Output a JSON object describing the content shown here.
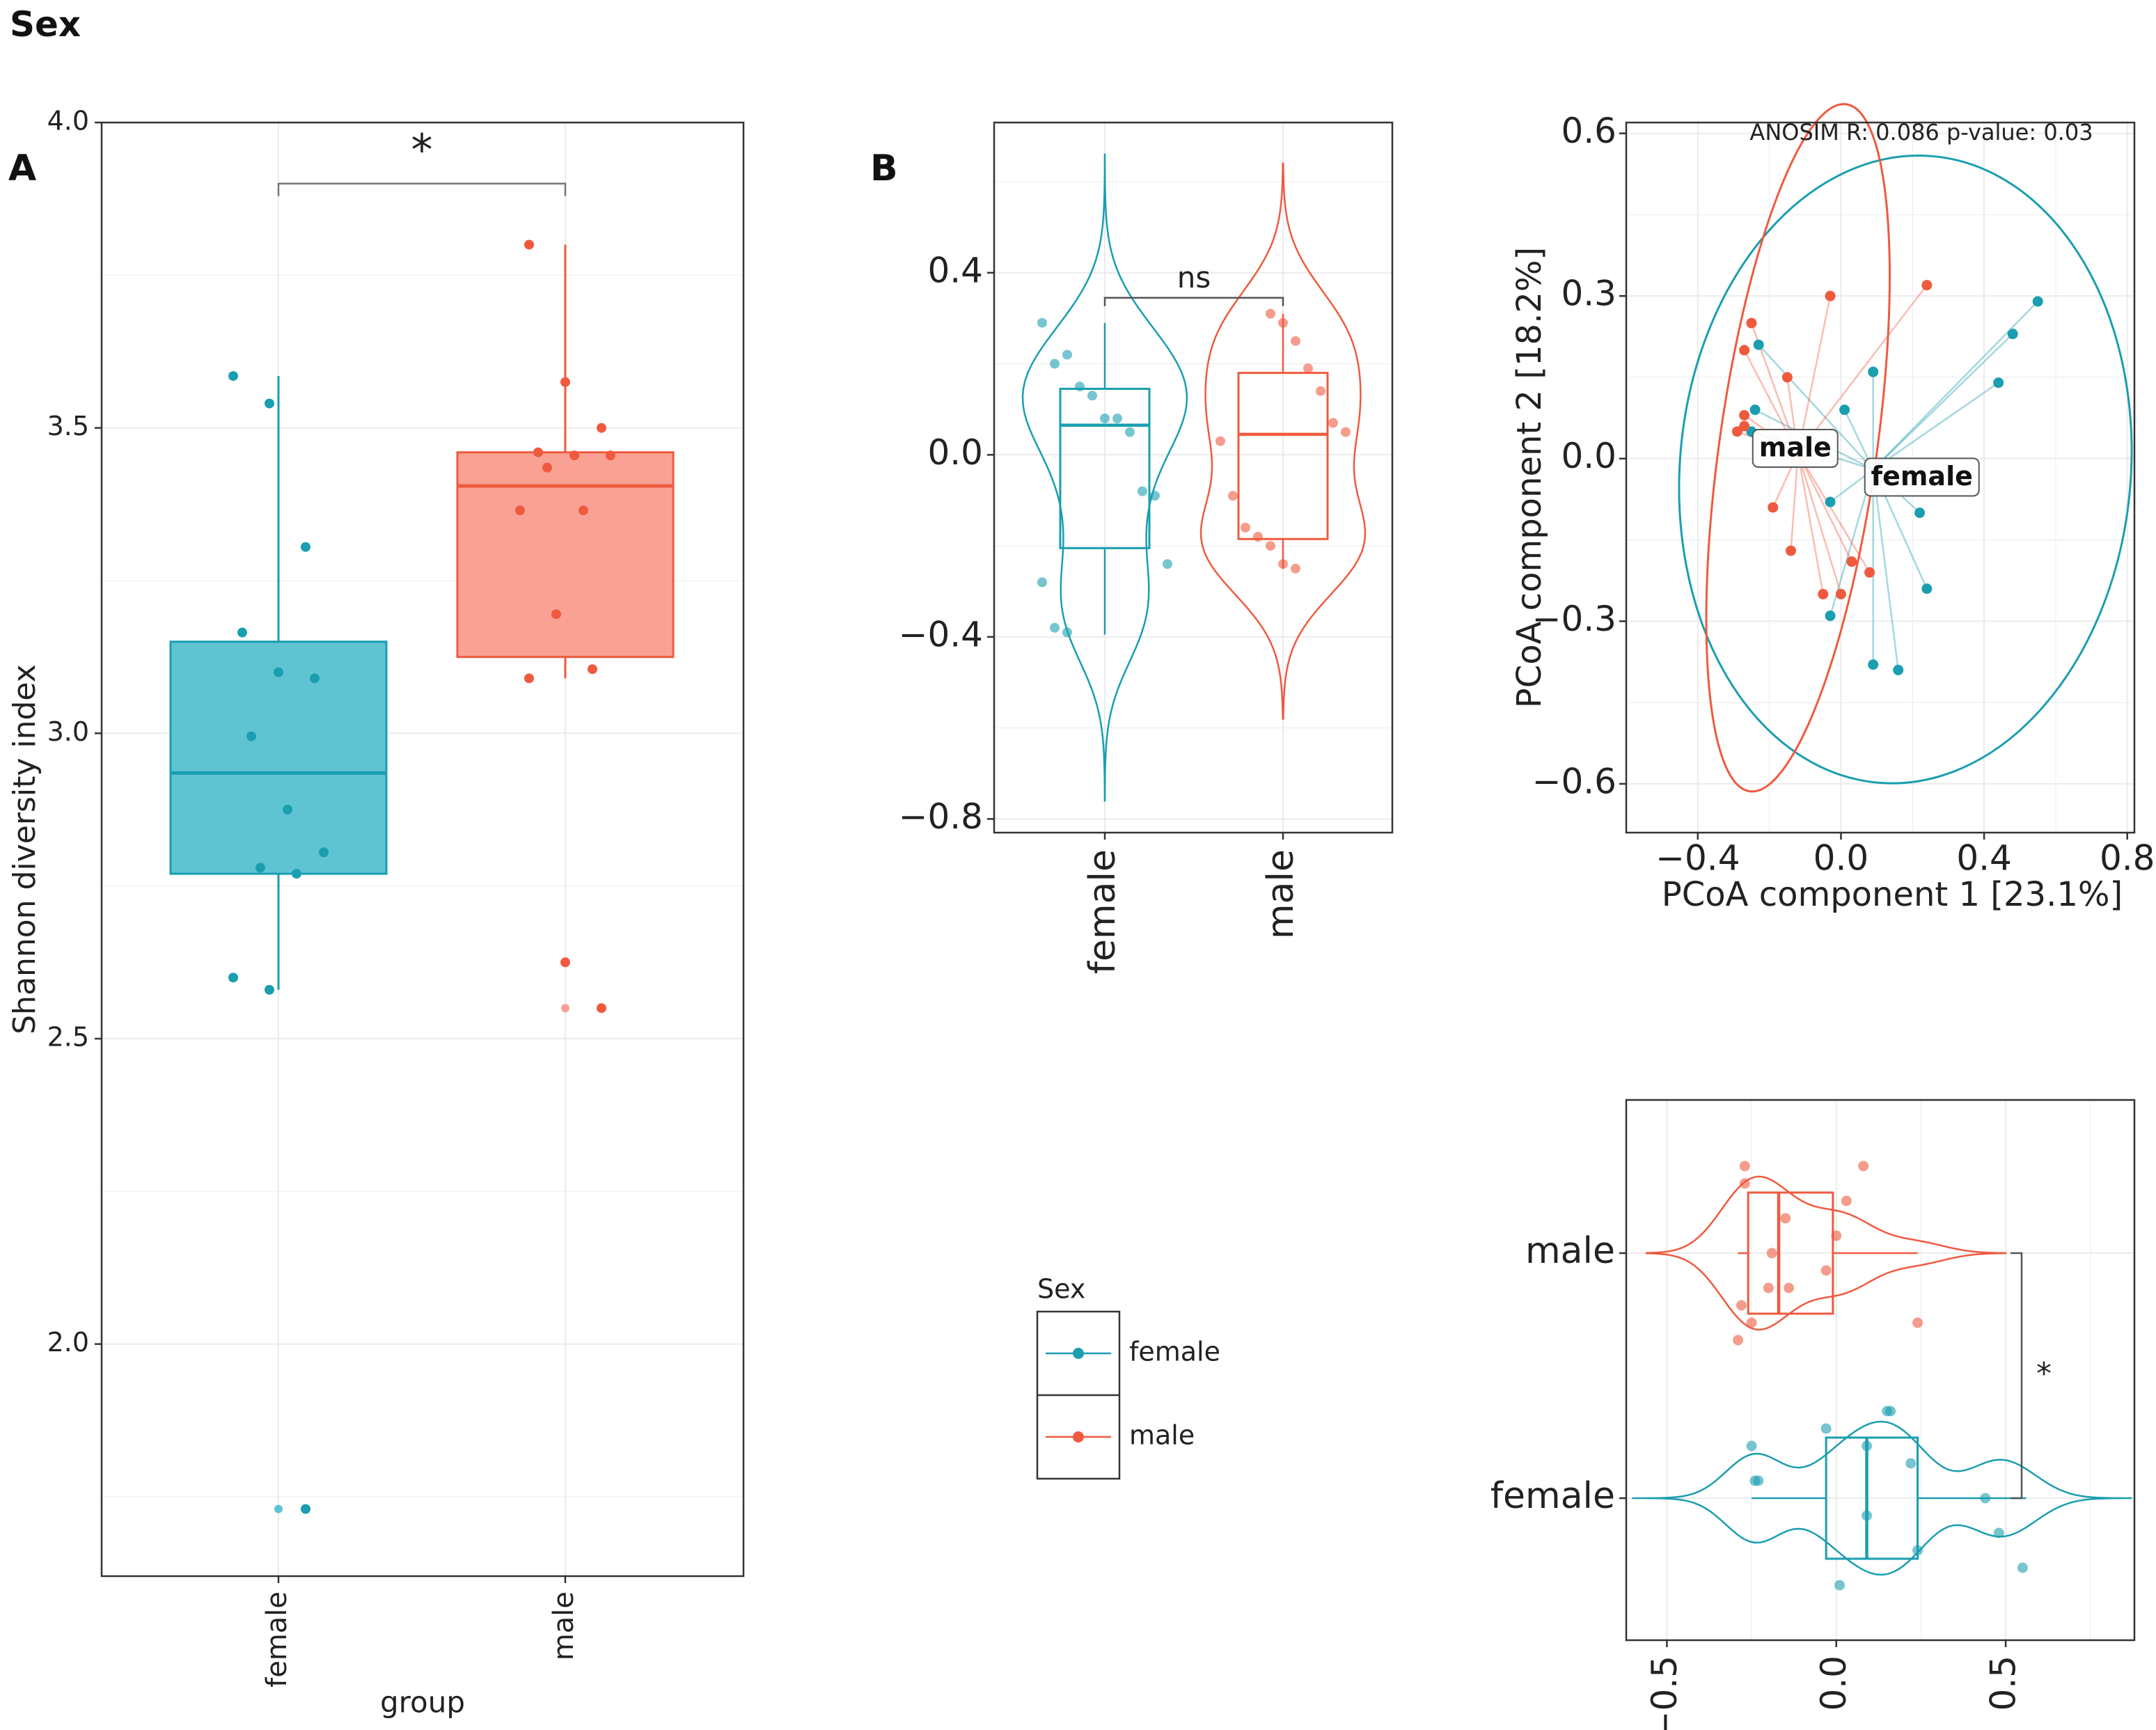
{
  "figure_title": "Sex",
  "panel_labels": [
    "A",
    "B"
  ],
  "colors": {
    "female": "#1a9eb0",
    "male": "#ef5a3f",
    "female_fill": "#5fc4d2",
    "male_fill": "#f9a294",
    "grid": "#ebebeb",
    "axis": "#333333"
  },
  "legend": {
    "title": "Sex",
    "items": [
      "female",
      "male"
    ]
  },
  "chart_data": [
    {
      "id": "A",
      "type": "box",
      "title": "",
      "xlabel": "group",
      "ylabel": "Shannon diversity index",
      "categories": [
        "female",
        "male"
      ],
      "ylim": [
        1.62,
        4.0
      ],
      "yticks": [
        2.0,
        2.5,
        3.0,
        3.5,
        4.0
      ],
      "ytick_labels": [
        "2.0",
        "2.5",
        "3.0",
        "3.5",
        "4.0"
      ],
      "boxes": [
        {
          "group": "female",
          "q1": 2.77,
          "median": 2.935,
          "q3": 3.15,
          "whisker_low": 2.58,
          "whisker_high": 3.585
        },
        {
          "group": "male",
          "q1": 3.125,
          "median": 3.405,
          "q3": 3.46,
          "whisker_low": 3.09,
          "whisker_high": 3.8
        }
      ],
      "points": {
        "female": [
          3.585,
          3.54,
          3.305,
          3.165,
          3.1,
          3.09,
          2.995,
          2.875,
          2.805,
          2.78,
          2.77,
          2.6,
          2.58,
          1.73
        ],
        "male": [
          3.8,
          3.575,
          3.5,
          3.46,
          3.455,
          3.455,
          3.435,
          3.365,
          3.365,
          3.195,
          3.105,
          3.09,
          2.625,
          2.55
        ]
      },
      "outliers": {
        "female": [
          1.73
        ],
        "male": [
          2.625,
          2.55
        ]
      },
      "significance": {
        "label": "*",
        "y": 3.9
      }
    },
    {
      "id": "B",
      "type": "violin",
      "xlabel": "",
      "ylabel": "",
      "categories": [
        "female",
        "male"
      ],
      "ylim": [
        -0.83,
        0.73
      ],
      "yticks": [
        -0.8,
        -0.4,
        0.0,
        0.4
      ],
      "ytick_labels": [
        "−0.8",
        "−0.4",
        "0.0",
        "0.4"
      ],
      "boxes": [
        {
          "group": "female",
          "q1": -0.205,
          "median": 0.065,
          "q3": 0.145,
          "whisker_low": -0.395,
          "whisker_high": 0.29
        },
        {
          "group": "male",
          "q1": -0.185,
          "median": 0.045,
          "q3": 0.18,
          "whisker_low": -0.25,
          "whisker_high": 0.31
        }
      ],
      "points": {
        "female": [
          0.29,
          0.2,
          0.22,
          0.15,
          0.13,
          0.08,
          0.08,
          0.05,
          -0.08,
          -0.09,
          -0.24,
          -0.28,
          -0.38,
          -0.39
        ],
        "male": [
          0.31,
          0.29,
          0.25,
          0.19,
          0.14,
          0.07,
          0.05,
          0.03,
          -0.09,
          -0.16,
          -0.18,
          -0.2,
          -0.24,
          -0.25
        ]
      },
      "significance": {
        "label": "ns",
        "y": 0.345
      }
    },
    {
      "id": "pcoa",
      "type": "scatter",
      "title": "ANOSIM R: 0.086 p-value: 0.03",
      "xlabel": "PCoA component 1 [23.1%]",
      "ylabel": "PCoA component 2 [18.2%]",
      "xlim": [
        -0.6,
        0.82
      ],
      "ylim": [
        -0.69,
        0.62
      ],
      "xticks": [
        -0.4,
        0.0,
        0.4,
        0.8
      ],
      "xtick_labels": [
        "−0.4",
        "0.0",
        "0.4",
        "0.8"
      ],
      "yticks": [
        -0.6,
        -0.3,
        0.0,
        0.3,
        0.6
      ],
      "ytick_labels": [
        "−0.6",
        "−0.3",
        "0.0",
        "0.3",
        "0.6"
      ],
      "series": [
        {
          "name": "female",
          "centroid": [
            0.09,
            -0.02
          ],
          "points": [
            [
              0.55,
              0.29
            ],
            [
              0.48,
              0.23
            ],
            [
              0.44,
              0.14
            ],
            [
              0.09,
              0.16
            ],
            [
              0.01,
              0.09
            ],
            [
              -0.23,
              0.21
            ],
            [
              -0.24,
              0.09
            ],
            [
              -0.25,
              0.05
            ],
            [
              -0.03,
              -0.08
            ],
            [
              0.22,
              -0.1
            ],
            [
              0.24,
              -0.24
            ],
            [
              -0.03,
              -0.29
            ],
            [
              0.09,
              -0.38
            ],
            [
              0.16,
              -0.39
            ]
          ],
          "ellipse": {
            "cx": 0.18,
            "cy": -0.02,
            "rx": 0.63,
            "ry": 0.58,
            "angle_deg": 5
          }
        },
        {
          "name": "male",
          "centroid": [
            -0.12,
            0.01
          ],
          "points": [
            [
              0.24,
              0.32
            ],
            [
              -0.03,
              0.3
            ],
            [
              -0.25,
              0.25
            ],
            [
              -0.27,
              0.2
            ],
            [
              -0.15,
              0.15
            ],
            [
              -0.27,
              0.08
            ],
            [
              -0.27,
              0.06
            ],
            [
              -0.29,
              0.05
            ],
            [
              -0.19,
              -0.09
            ],
            [
              -0.14,
              -0.17
            ],
            [
              0.03,
              -0.19
            ],
            [
              0.08,
              -0.21
            ],
            [
              -0.05,
              -0.25
            ],
            [
              0.0,
              -0.25
            ]
          ],
          "ellipse": {
            "cx": -0.12,
            "cy": 0.02,
            "rx": 0.22,
            "ry": 0.64,
            "angle_deg": 8
          }
        }
      ],
      "labels": [
        "male",
        "female"
      ]
    },
    {
      "id": "pc1-violin",
      "type": "violin",
      "orientation": "horizontal",
      "xlabel": "",
      "ylabel": "",
      "categories": [
        "female",
        "male"
      ],
      "xlim": [
        -0.62,
        0.88
      ],
      "xticks": [
        -0.5,
        0.0,
        0.5
      ],
      "xtick_labels": [
        "−0.5",
        "0.0",
        "0.5"
      ],
      "boxes": [
        {
          "group": "male",
          "q1": -0.26,
          "median": -0.17,
          "q3": -0.01,
          "whisker_low": -0.29,
          "whisker_high": 0.24
        },
        {
          "group": "female",
          "q1": -0.03,
          "median": 0.09,
          "q3": 0.24,
          "whisker_low": -0.25,
          "whisker_high": 0.56
        }
      ],
      "points": {
        "male": [
          -0.27,
          -0.25,
          -0.2,
          -0.19,
          -0.15,
          -0.27,
          -0.29,
          -0.28,
          -0.03,
          0.0,
          0.03,
          0.08,
          0.24,
          -0.14
        ],
        "female": [
          -0.24,
          0.09,
          0.15,
          0.55,
          0.48,
          0.44,
          0.22,
          -0.03,
          0.01,
          0.24,
          0.09,
          -0.23,
          -0.25,
          0.16
        ]
      },
      "significance": {
        "label": "*"
      }
    }
  ]
}
